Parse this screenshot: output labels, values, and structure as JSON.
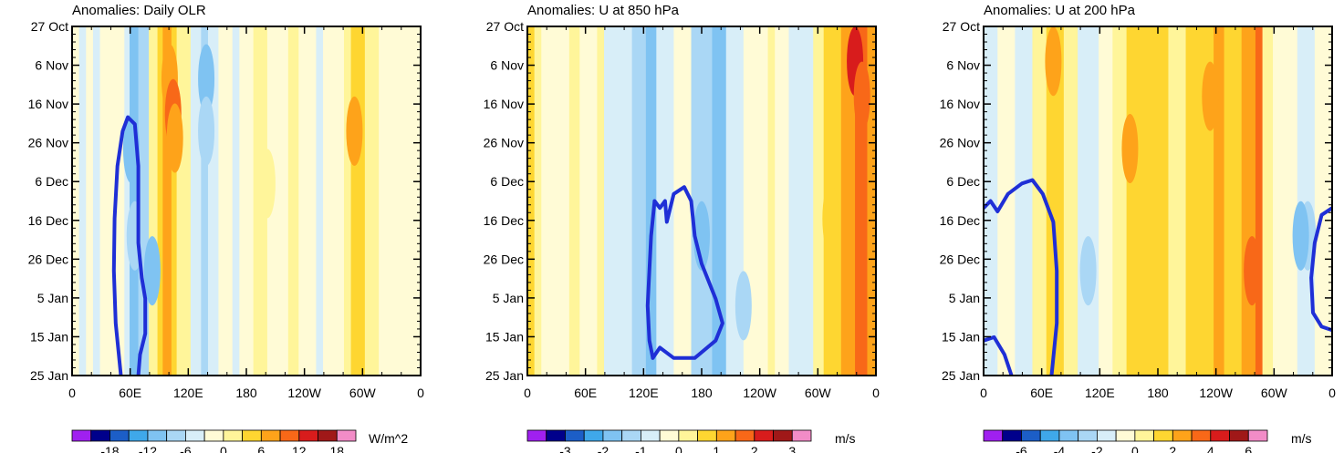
{
  "chart_data": [
    {
      "type": "heatmap",
      "title": "Anomalies: Daily OLR",
      "x_ticks": [
        "0",
        "60E",
        "120E",
        "180",
        "120W",
        "60W",
        "0"
      ],
      "y_ticks": [
        "27 Oct",
        "6 Nov",
        "16 Nov",
        "26 Nov",
        "6 Dec",
        "16 Dec",
        "26 Dec",
        "5 Jan",
        "15 Jan",
        "25 Jan"
      ],
      "colorbar": {
        "labels": [
          "-18",
          "-12",
          "-6",
          "0",
          "6",
          "12",
          "18"
        ],
        "units": "W/m^2"
      },
      "bands": [
        [
          0.0,
          0.02,
          0
        ],
        [
          0.02,
          0.04,
          -1
        ],
        [
          0.04,
          0.06,
          0
        ],
        [
          0.06,
          0.08,
          -1
        ],
        [
          0.08,
          0.15,
          0
        ],
        [
          0.15,
          0.165,
          -1
        ],
        [
          0.165,
          0.19,
          -3
        ],
        [
          0.19,
          0.22,
          -2
        ],
        [
          0.22,
          0.245,
          1
        ],
        [
          0.245,
          0.26,
          2
        ],
        [
          0.26,
          0.285,
          3
        ],
        [
          0.285,
          0.3,
          2
        ],
        [
          0.3,
          0.34,
          1
        ],
        [
          0.34,
          0.37,
          -1
        ],
        [
          0.37,
          0.39,
          -2
        ],
        [
          0.39,
          0.42,
          -1
        ],
        [
          0.42,
          0.46,
          0
        ],
        [
          0.46,
          0.48,
          -1
        ],
        [
          0.48,
          0.52,
          0
        ],
        [
          0.52,
          0.56,
          1
        ],
        [
          0.56,
          0.62,
          0
        ],
        [
          0.62,
          0.65,
          1
        ],
        [
          0.65,
          0.7,
          0
        ],
        [
          0.7,
          0.72,
          -1
        ],
        [
          0.72,
          0.78,
          0
        ],
        [
          0.78,
          0.8,
          1
        ],
        [
          0.8,
          0.84,
          2
        ],
        [
          0.84,
          0.88,
          1
        ],
        [
          0.88,
          1.0,
          0
        ]
      ],
      "blobs": [
        [
          0.28,
          0.15,
          3
        ],
        [
          0.29,
          0.25,
          4
        ],
        [
          0.295,
          0.32,
          3
        ],
        [
          0.385,
          0.15,
          -3
        ],
        [
          0.385,
          0.3,
          -2
        ],
        [
          0.17,
          0.35,
          -3
        ],
        [
          0.18,
          0.6,
          -2
        ],
        [
          0.23,
          0.7,
          -3
        ],
        [
          0.81,
          0.3,
          3
        ],
        [
          0.56,
          0.45,
          1
        ]
      ],
      "contours": [
        [
          [
            0.14,
            1.0
          ],
          [
            0.125,
            0.85
          ],
          [
            0.12,
            0.7
          ],
          [
            0.122,
            0.55
          ],
          [
            0.13,
            0.4
          ],
          [
            0.145,
            0.3
          ],
          [
            0.16,
            0.26
          ],
          [
            0.18,
            0.28
          ],
          [
            0.19,
            0.4
          ],
          [
            0.19,
            0.62
          ],
          [
            0.2,
            0.72
          ],
          [
            0.21,
            0.78
          ],
          [
            0.21,
            0.88
          ],
          [
            0.195,
            0.94
          ],
          [
            0.19,
            1.0
          ]
        ]
      ]
    },
    {
      "type": "heatmap",
      "title": "Anomalies: U at 850 hPa",
      "x_ticks": [
        "0",
        "60E",
        "120E",
        "180",
        "120W",
        "60W",
        "0"
      ],
      "y_ticks": [
        "27 Oct",
        "6 Nov",
        "16 Nov",
        "26 Nov",
        "6 Dec",
        "16 Dec",
        "26 Dec",
        "5 Jan",
        "15 Jan",
        "25 Jan"
      ],
      "colorbar": {
        "labels": [
          "-3",
          "-2",
          "-1",
          "0",
          "1",
          "2",
          "3"
        ],
        "units": "m/s"
      },
      "bands": [
        [
          0.0,
          0.02,
          2
        ],
        [
          0.02,
          0.04,
          1
        ],
        [
          0.04,
          0.12,
          0
        ],
        [
          0.12,
          0.15,
          1
        ],
        [
          0.15,
          0.2,
          0
        ],
        [
          0.2,
          0.22,
          1
        ],
        [
          0.22,
          0.3,
          -1
        ],
        [
          0.3,
          0.34,
          -2
        ],
        [
          0.34,
          0.37,
          -3
        ],
        [
          0.37,
          0.42,
          -1
        ],
        [
          0.42,
          0.47,
          0
        ],
        [
          0.47,
          0.53,
          -2
        ],
        [
          0.53,
          0.57,
          -3
        ],
        [
          0.57,
          0.62,
          -1
        ],
        [
          0.62,
          0.69,
          0
        ],
        [
          0.69,
          0.71,
          1
        ],
        [
          0.71,
          0.75,
          0
        ],
        [
          0.75,
          0.82,
          -1
        ],
        [
          0.82,
          0.85,
          1
        ],
        [
          0.85,
          0.9,
          2
        ],
        [
          0.9,
          0.94,
          3
        ],
        [
          0.94,
          0.975,
          4
        ],
        [
          0.975,
          1.0,
          3
        ]
      ],
      "blobs": [
        [
          0.94,
          0.1,
          5
        ],
        [
          0.96,
          0.2,
          4
        ],
        [
          0.5,
          0.6,
          -3
        ],
        [
          0.62,
          0.8,
          -2
        ],
        [
          0.87,
          0.55,
          2
        ]
      ],
      "contours": [
        [
          [
            0.36,
            0.95
          ],
          [
            0.35,
            0.9
          ],
          [
            0.345,
            0.8
          ],
          [
            0.355,
            0.6
          ],
          [
            0.365,
            0.5
          ],
          [
            0.38,
            0.52
          ],
          [
            0.395,
            0.5
          ],
          [
            0.4,
            0.56
          ],
          [
            0.42,
            0.48
          ],
          [
            0.45,
            0.46
          ],
          [
            0.47,
            0.5
          ],
          [
            0.48,
            0.6
          ],
          [
            0.5,
            0.68
          ],
          [
            0.54,
            0.78
          ],
          [
            0.56,
            0.85
          ],
          [
            0.54,
            0.9
          ],
          [
            0.48,
            0.95
          ],
          [
            0.42,
            0.95
          ],
          [
            0.38,
            0.92
          ],
          [
            0.36,
            0.95
          ]
        ]
      ]
    },
    {
      "type": "heatmap",
      "title": "Anomalies: U at 200 hPa",
      "x_ticks": [
        "0",
        "60E",
        "120E",
        "180",
        "120W",
        "60W",
        "0"
      ],
      "y_ticks": [
        "27 Oct",
        "6 Nov",
        "16 Nov",
        "26 Nov",
        "6 Dec",
        "16 Dec",
        "26 Dec",
        "5 Jan",
        "15 Jan",
        "25 Jan"
      ],
      "colorbar": {
        "labels": [
          "-6",
          "-4",
          "-2",
          "0",
          "2",
          "4",
          "6"
        ],
        "units": "m/s"
      },
      "bands": [
        [
          0.0,
          0.04,
          -1
        ],
        [
          0.04,
          0.09,
          0
        ],
        [
          0.09,
          0.14,
          -1
        ],
        [
          0.14,
          0.18,
          1
        ],
        [
          0.18,
          0.23,
          2
        ],
        [
          0.23,
          0.27,
          1
        ],
        [
          0.27,
          0.33,
          -1
        ],
        [
          0.33,
          0.37,
          0
        ],
        [
          0.37,
          0.41,
          1
        ],
        [
          0.41,
          0.53,
          2
        ],
        [
          0.53,
          0.58,
          1
        ],
        [
          0.58,
          0.66,
          2
        ],
        [
          0.66,
          0.69,
          3
        ],
        [
          0.69,
          0.74,
          2
        ],
        [
          0.74,
          0.78,
          3
        ],
        [
          0.78,
          0.8,
          4
        ],
        [
          0.8,
          0.83,
          1
        ],
        [
          0.83,
          0.9,
          0
        ],
        [
          0.9,
          0.95,
          -1
        ],
        [
          0.95,
          1.0,
          0
        ]
      ],
      "blobs": [
        [
          0.2,
          0.1,
          3
        ],
        [
          0.65,
          0.2,
          3
        ],
        [
          0.77,
          0.7,
          4
        ],
        [
          0.42,
          0.35,
          3
        ],
        [
          0.3,
          0.7,
          -2
        ],
        [
          0.93,
          0.6,
          -2
        ],
        [
          0.91,
          0.6,
          -3
        ]
      ],
      "contours": [
        [
          [
            0.0,
            0.52
          ],
          [
            0.02,
            0.5
          ],
          [
            0.04,
            0.53
          ],
          [
            0.07,
            0.48
          ],
          [
            0.11,
            0.45
          ],
          [
            0.14,
            0.44
          ],
          [
            0.17,
            0.48
          ],
          [
            0.2,
            0.56
          ],
          [
            0.21,
            0.7
          ],
          [
            0.21,
            0.85
          ],
          [
            0.2,
            0.95
          ],
          [
            0.195,
            1.0
          ]
        ],
        [
          [
            0.0,
            0.9
          ],
          [
            0.03,
            0.89
          ],
          [
            0.06,
            0.94
          ],
          [
            0.08,
            1.0
          ]
        ],
        [
          [
            1.0,
            0.52
          ],
          [
            0.97,
            0.54
          ],
          [
            0.95,
            0.62
          ],
          [
            0.94,
            0.72
          ],
          [
            0.945,
            0.82
          ],
          [
            0.97,
            0.86
          ],
          [
            1.0,
            0.87
          ]
        ]
      ]
    }
  ]
}
